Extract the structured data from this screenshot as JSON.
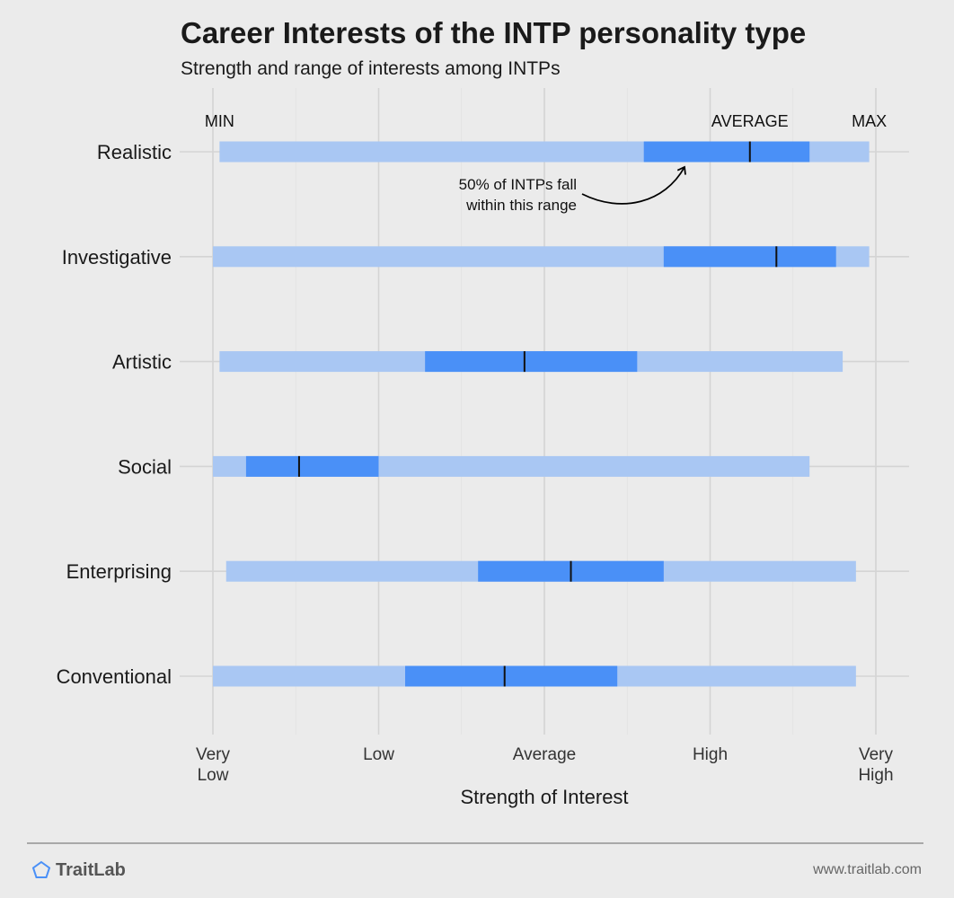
{
  "title": "Career Interests of the INTP personality type",
  "subtitle": "Strength and range of interests among INTPs",
  "footer": {
    "brand": "TraitLab",
    "website": "www.traitlab.com"
  },
  "colors": {
    "range": "#a9c7f3",
    "iqr": "#4a90f7",
    "median": "#111111",
    "background": "#ebebeb"
  },
  "chart_data": {
    "type": "range-bar",
    "xlabel": "Strength of Interest",
    "ticks": [
      {
        "value": 1,
        "label": "Very\nLow"
      },
      {
        "value": 2,
        "label": "Low"
      },
      {
        "value": 3,
        "label": "Average"
      },
      {
        "value": 4,
        "label": "High"
      },
      {
        "value": 5,
        "label": "Very\nHigh"
      }
    ],
    "xlim": [
      1,
      5
    ],
    "grid": true,
    "header_labels": {
      "min": "MIN",
      "average": "AVERAGE",
      "max": "MAX"
    },
    "annotation": {
      "text": "50% of INTPs fall\nwithin this range",
      "target": "Realistic"
    },
    "categories": [
      "Realistic",
      "Investigative",
      "Artistic",
      "Social",
      "Enterprising",
      "Conventional"
    ],
    "series": [
      {
        "category": "Realistic",
        "min": 1.04,
        "q1": 3.6,
        "median": 4.24,
        "q3": 4.6,
        "max": 4.96
      },
      {
        "category": "Investigative",
        "min": 1.0,
        "q1": 3.72,
        "median": 4.4,
        "q3": 4.76,
        "max": 4.96
      },
      {
        "category": "Artistic",
        "min": 1.04,
        "q1": 2.28,
        "median": 2.88,
        "q3": 3.56,
        "max": 4.8
      },
      {
        "category": "Social",
        "min": 1.0,
        "q1": 1.2,
        "median": 1.52,
        "q3": 2.0,
        "max": 4.6
      },
      {
        "category": "Enterprising",
        "min": 1.08,
        "q1": 2.6,
        "median": 3.16,
        "q3": 3.72,
        "max": 4.88
      },
      {
        "category": "Conventional",
        "min": 1.0,
        "q1": 2.16,
        "median": 2.76,
        "q3": 3.44,
        "max": 4.88
      }
    ]
  }
}
